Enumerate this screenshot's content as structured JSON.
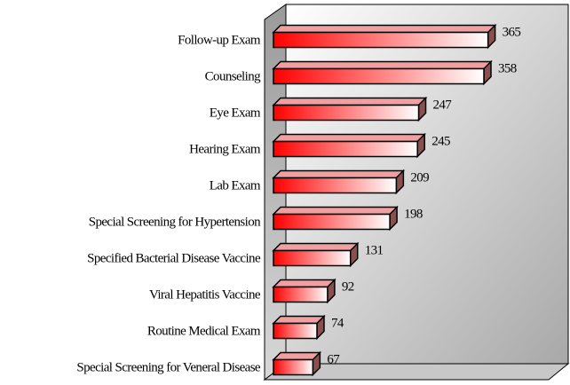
{
  "chart_data": {
    "type": "bar3d-horizontal",
    "categories": [
      "Follow-up Exam",
      "Counseling",
      "Eye Exam",
      "Hearing Exam",
      "Lab Exam",
      "Special Screening for Hypertension",
      "Specified Bacterial Disease Vaccine",
      "Viral Hepatitis Vaccine",
      "Routine Medical Exam",
      "Special Screening for Veneral Disease"
    ],
    "values": [
      365,
      358,
      247,
      245,
      209,
      198,
      131,
      92,
      74,
      67
    ],
    "color": "#ff0000",
    "xlim": [
      0,
      500
    ]
  }
}
